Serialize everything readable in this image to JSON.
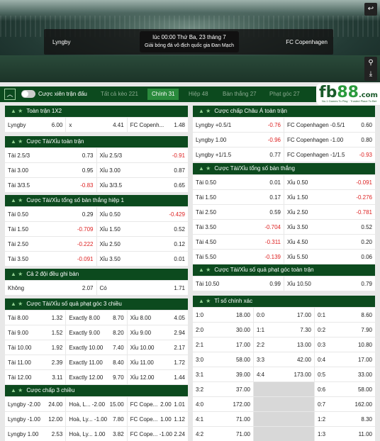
{
  "match": {
    "home": "Lyngby",
    "away": "FC Copenhagen",
    "time": "lúc 00:00 Thứ Ba, 23 tháng 7",
    "league": "Giải bóng đá vô địch quốc gia Đan Mạch"
  },
  "tabs": {
    "toggle_label": "Cược xiên trận đấu",
    "items": [
      {
        "label": "Tất cả kèo 221"
      },
      {
        "label": "Chính 31",
        "active": true
      },
      {
        "label": "Hiệp 48"
      },
      {
        "label": "Bàn thắng 27"
      },
      {
        "label": "Phạt góc 27"
      }
    ]
  },
  "logo": {
    "text": "fb88.com",
    "tagline": "No.1 Games To Play · Trusted Place To Bet"
  },
  "left": [
    {
      "title": "Toàn trận 1X2",
      "cols": 3,
      "rows": [
        [
          [
            "Lyngby",
            "6.00"
          ],
          [
            "x",
            "4.41"
          ],
          [
            "FC Copenh...",
            "1.48"
          ]
        ]
      ]
    },
    {
      "title": "Cược Tài/Xỉu toàn trận",
      "cols": 2,
      "rows": [
        [
          [
            "Tài 2.5/3",
            "0.73"
          ],
          [
            "Xỉu 2.5/3",
            "-0.91"
          ]
        ],
        [
          [
            "Tài 3.00",
            "0.95"
          ],
          [
            "Xỉu 3.00",
            "0.87"
          ]
        ],
        [
          [
            "Tài 3/3.5",
            "-0.83"
          ],
          [
            "Xỉu 3/3.5",
            "0.65"
          ]
        ]
      ]
    },
    {
      "title": "Cược Tài/Xỉu tổng số bàn thắng hiệp 1",
      "cols": 2,
      "rows": [
        [
          [
            "Tài 0.50",
            "0.29"
          ],
          [
            "Xỉu 0.50",
            "-0.429"
          ]
        ],
        [
          [
            "Tài 1.50",
            "-0.709"
          ],
          [
            "Xỉu 1.50",
            "0.52"
          ]
        ],
        [
          [
            "Tài 2.50",
            "-0.222"
          ],
          [
            "Xỉu 2.50",
            "0.12"
          ]
        ],
        [
          [
            "Tài 3.50",
            "-0.091"
          ],
          [
            "Xỉu 3.50",
            "0.01"
          ]
        ]
      ]
    },
    {
      "title": "Cả 2 đội đều ghi bàn",
      "cols": 2,
      "rows": [
        [
          [
            "Không",
            "2.07"
          ],
          [
            "Có",
            "1.71"
          ]
        ]
      ]
    },
    {
      "title": "Cược Tài/Xỉu số quả phạt góc 3 chiều",
      "cols": 3,
      "rows": [
        [
          [
            "Tài 8.00",
            "1.32"
          ],
          [
            "Exactly 8.00",
            "8.70"
          ],
          [
            "Xỉu 8.00",
            "4.05"
          ]
        ],
        [
          [
            "Tài 9.00",
            "1.52"
          ],
          [
            "Exactly 9.00",
            "8.20"
          ],
          [
            "Xỉu 9.00",
            "2.94"
          ]
        ],
        [
          [
            "Tài 10.00",
            "1.92"
          ],
          [
            "Exactly 10.00",
            "7.40"
          ],
          [
            "Xỉu 10.00",
            "2.17"
          ]
        ],
        [
          [
            "Tài 11.00",
            "2.39"
          ],
          [
            "Exactly 11.00",
            "8.40"
          ],
          [
            "Xỉu 11.00",
            "1.72"
          ]
        ],
        [
          [
            "Tài 12.00",
            "3.11"
          ],
          [
            "Exactly 12.00",
            "9.70"
          ],
          [
            "Xỉu 12.00",
            "1.44"
          ]
        ]
      ]
    },
    {
      "title": "Cược chấp 3 chiều",
      "cols": 3,
      "rows": [
        [
          [
            "Lyngby -2.00",
            "24.00"
          ],
          [
            "Hoà, L... -2.00",
            "15.00"
          ],
          [
            "FC Cope...",
            "2.00",
            "1.01"
          ]
        ],
        [
          [
            "Lyngby -1.00",
            "12.00"
          ],
          [
            "Hoà, Ly... -1.00",
            "7.80"
          ],
          [
            "FC Cope...",
            "1.00",
            "1.12"
          ]
        ],
        [
          [
            "Lyngby 1.00",
            "2.53"
          ],
          [
            "Hoà, Ly... 1.00",
            "3.82"
          ],
          [
            "FC Cope...",
            "-1.00",
            "2.24"
          ]
        ]
      ]
    }
  ],
  "right": [
    {
      "title": "Cược chấp Châu Á toàn trận",
      "cols": 2,
      "rows": [
        [
          [
            "Lyngby +0.5/1",
            "-0.76"
          ],
          [
            "FC Copenhagen -0.5/1",
            "0.60"
          ]
        ],
        [
          [
            "Lyngby 1.00",
            "-0.96"
          ],
          [
            "FC Copenhagen -1.00",
            "0.80"
          ]
        ],
        [
          [
            "Lyngby +1/1.5",
            "0.77"
          ],
          [
            "FC Copenhagen -1/1.5",
            "-0.93"
          ]
        ]
      ]
    },
    {
      "title": "Cược Tài/Xỉu tổng số bàn thắng",
      "cols": 2,
      "rows": [
        [
          [
            "Tài 0.50",
            "0.01"
          ],
          [
            "Xỉu 0.50",
            "-0.091"
          ]
        ],
        [
          [
            "Tài 1.50",
            "0.17"
          ],
          [
            "Xỉu 1.50",
            "-0.276"
          ]
        ],
        [
          [
            "Tài 2.50",
            "0.59"
          ],
          [
            "Xỉu 2.50",
            "-0.781"
          ]
        ],
        [
          [
            "Tài 3.50",
            "-0.704"
          ],
          [
            "Xỉu 3.50",
            "0.52"
          ]
        ],
        [
          [
            "Tài 4.50",
            "-0.311"
          ],
          [
            "Xỉu 4.50",
            "0.20"
          ]
        ],
        [
          [
            "Tài 5.50",
            "-0.139"
          ],
          [
            "Xỉu 5.50",
            "0.06"
          ]
        ]
      ]
    },
    {
      "title": "Cược Tài/Xỉu số quả phạt góc toàn trận",
      "cols": 2,
      "rows": [
        [
          [
            "Tài 10.50",
            "0.99"
          ],
          [
            "Xỉu 10.50",
            "0.79"
          ]
        ]
      ]
    },
    {
      "title": "Tỉ số chính xác",
      "cols": 3,
      "rows": [
        [
          [
            "1:0",
            "18.00"
          ],
          [
            "0:0",
            "17.00"
          ],
          [
            "0:1",
            "8.60"
          ]
        ],
        [
          [
            "2:0",
            "30.00"
          ],
          [
            "1:1",
            "7.30"
          ],
          [
            "0:2",
            "7.90"
          ]
        ],
        [
          [
            "2:1",
            "17.00"
          ],
          [
            "2:2",
            "13.00"
          ],
          [
            "0:3",
            "10.80"
          ]
        ],
        [
          [
            "3:0",
            "58.00"
          ],
          [
            "3:3",
            "42.00"
          ],
          [
            "0:4",
            "17.00"
          ]
        ],
        [
          [
            "3:1",
            "39.00"
          ],
          [
            "4:4",
            "173.00"
          ],
          [
            "0:5",
            "33.00"
          ]
        ],
        [
          [
            "3:2",
            "37.00"
          ],
          null,
          [
            "0:6",
            "58.00"
          ]
        ],
        [
          [
            "4:0",
            "172.00"
          ],
          null,
          [
            "0:7",
            "162.00"
          ]
        ],
        [
          [
            "4:1",
            "71.00"
          ],
          null,
          [
            "1:2",
            "8.30"
          ]
        ],
        [
          [
            "4:2",
            "71.00"
          ],
          null,
          [
            "1:3",
            "11.00"
          ]
        ]
      ]
    }
  ]
}
